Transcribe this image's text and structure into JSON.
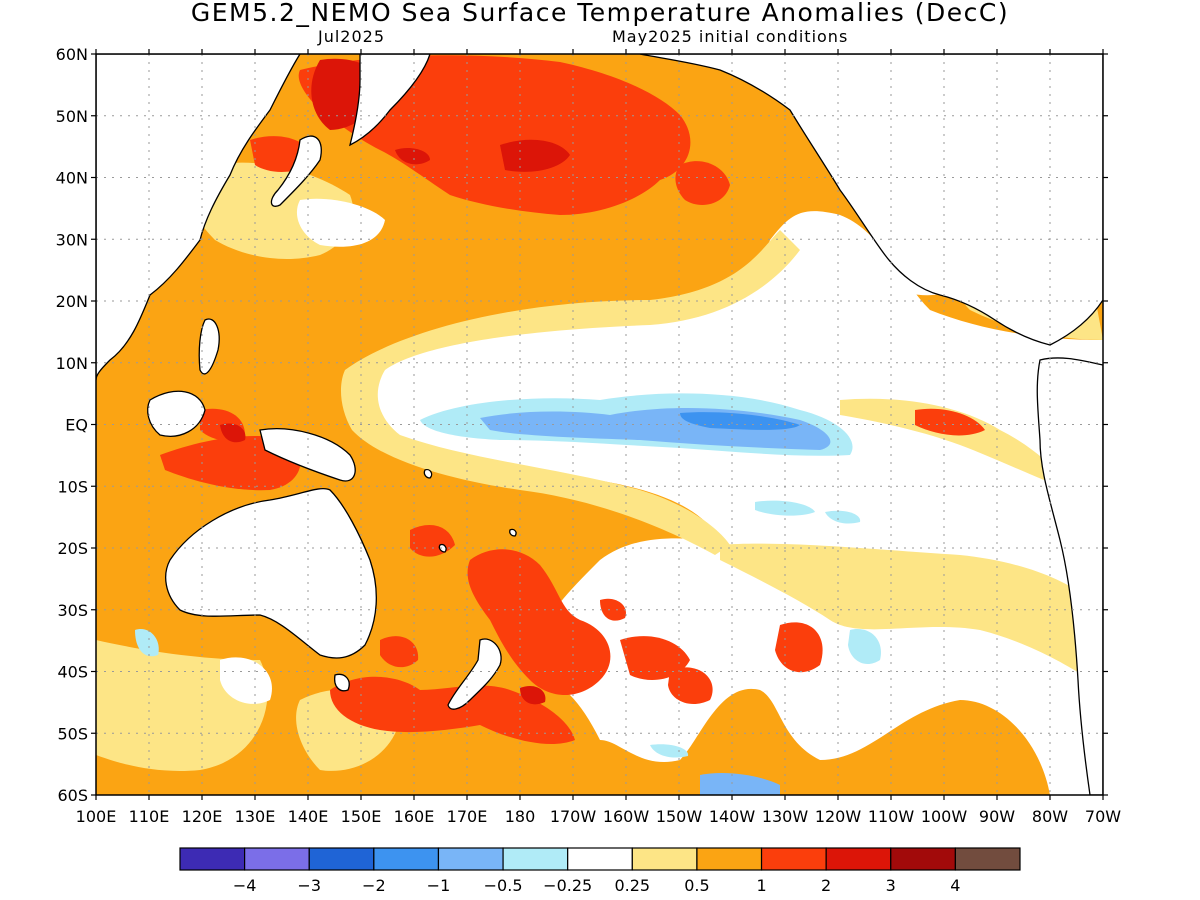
{
  "title": "GEM5.2_NEMO Sea Surface Temperature Anomalies (DecC)",
  "subtitle_left": "Jul2025",
  "subtitle_right": "May2025 initial conditions",
  "lat_labels": [
    "60N",
    "50N",
    "40N",
    "30N",
    "20N",
    "10N",
    "EQ",
    "10S",
    "20S",
    "30S",
    "40S",
    "50S",
    "60S"
  ],
  "lon_labels": [
    "100E",
    "110E",
    "120E",
    "130E",
    "140E",
    "150E",
    "160E",
    "170E",
    "180",
    "170W",
    "160W",
    "150W",
    "140W",
    "130W",
    "120W",
    "110W",
    "100W",
    "90W",
    "80W",
    "70W"
  ],
  "colorbar": {
    "colors": [
      "#3d2bb4",
      "#7b6ee8",
      "#1f64d6",
      "#3d93f0",
      "#79b5f7",
      "#b0ebf7",
      "#ffffff",
      "#fde586",
      "#fba413",
      "#fb3e0c",
      "#dc1508",
      "#a20a0a",
      "#724c3e"
    ],
    "labels": [
      "−4",
      "−3",
      "−2",
      "−1",
      "−0.5",
      "−0.25",
      "0.25",
      "0.5",
      "1",
      "2",
      "3",
      "4"
    ]
  },
  "map_colors": {
    "land": "#ffffff",
    "coast": "#000000",
    "grid": "#9a9a9a"
  }
}
